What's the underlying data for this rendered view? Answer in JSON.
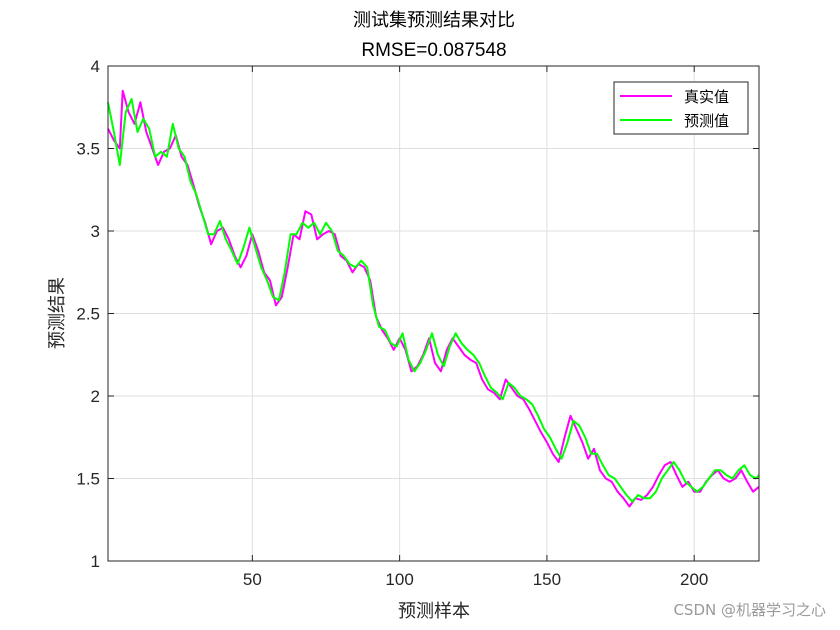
{
  "chart_data": {
    "type": "line",
    "title": "测试集预测结果对比",
    "subtitle": "RMSE=0.087548",
    "xlabel": "预测样本",
    "ylabel": "预测结果",
    "xlim": [
      1,
      222
    ],
    "ylim": [
      1,
      4
    ],
    "xticks": [
      50,
      100,
      150,
      200
    ],
    "yticks": [
      1,
      1.5,
      2,
      2.5,
      3,
      3.5,
      4
    ],
    "xtick_labels": [
      "50",
      "100",
      "150",
      "200"
    ],
    "ytick_labels": [
      "1",
      "1.5",
      "2",
      "2.5",
      "3",
      "3.5",
      "4"
    ],
    "grid": true,
    "legend_position": "top-right",
    "series": [
      {
        "name": "真实值",
        "color": "#ff00ff",
        "points": [
          [
            1,
            3.62
          ],
          [
            3,
            3.55
          ],
          [
            5,
            3.5
          ],
          [
            6,
            3.85
          ],
          [
            8,
            3.72
          ],
          [
            10,
            3.65
          ],
          [
            12,
            3.78
          ],
          [
            14,
            3.6
          ],
          [
            16,
            3.5
          ],
          [
            18,
            3.4
          ],
          [
            20,
            3.48
          ],
          [
            22,
            3.5
          ],
          [
            24,
            3.58
          ],
          [
            26,
            3.45
          ],
          [
            28,
            3.4
          ],
          [
            30,
            3.28
          ],
          [
            32,
            3.15
          ],
          [
            34,
            3.05
          ],
          [
            36,
            2.92
          ],
          [
            38,
            3.0
          ],
          [
            40,
            3.02
          ],
          [
            42,
            2.95
          ],
          [
            44,
            2.85
          ],
          [
            46,
            2.78
          ],
          [
            48,
            2.85
          ],
          [
            50,
            2.98
          ],
          [
            52,
            2.88
          ],
          [
            54,
            2.75
          ],
          [
            56,
            2.7
          ],
          [
            58,
            2.55
          ],
          [
            60,
            2.6
          ],
          [
            62,
            2.78
          ],
          [
            64,
            2.98
          ],
          [
            66,
            2.95
          ],
          [
            68,
            3.12
          ],
          [
            70,
            3.1
          ],
          [
            72,
            2.95
          ],
          [
            74,
            2.98
          ],
          [
            76,
            3.0
          ],
          [
            78,
            2.98
          ],
          [
            80,
            2.85
          ],
          [
            82,
            2.82
          ],
          [
            84,
            2.75
          ],
          [
            86,
            2.8
          ],
          [
            88,
            2.78
          ],
          [
            90,
            2.7
          ],
          [
            92,
            2.48
          ],
          [
            94,
            2.4
          ],
          [
            96,
            2.35
          ],
          [
            98,
            2.28
          ],
          [
            100,
            2.35
          ],
          [
            102,
            2.28
          ],
          [
            104,
            2.15
          ],
          [
            106,
            2.18
          ],
          [
            108,
            2.25
          ],
          [
            110,
            2.35
          ],
          [
            112,
            2.2
          ],
          [
            114,
            2.15
          ],
          [
            116,
            2.28
          ],
          [
            118,
            2.35
          ],
          [
            120,
            2.3
          ],
          [
            122,
            2.25
          ],
          [
            124,
            2.22
          ],
          [
            126,
            2.2
          ],
          [
            128,
            2.1
          ],
          [
            130,
            2.04
          ],
          [
            132,
            2.02
          ],
          [
            134,
            1.98
          ],
          [
            136,
            2.1
          ],
          [
            138,
            2.05
          ],
          [
            140,
            2.0
          ],
          [
            142,
            1.98
          ],
          [
            144,
            1.92
          ],
          [
            146,
            1.85
          ],
          [
            148,
            1.78
          ],
          [
            150,
            1.72
          ],
          [
            152,
            1.65
          ],
          [
            154,
            1.6
          ],
          [
            156,
            1.75
          ],
          [
            158,
            1.88
          ],
          [
            160,
            1.8
          ],
          [
            162,
            1.72
          ],
          [
            164,
            1.62
          ],
          [
            166,
            1.68
          ],
          [
            168,
            1.55
          ],
          [
            170,
            1.5
          ],
          [
            172,
            1.48
          ],
          [
            174,
            1.42
          ],
          [
            176,
            1.38
          ],
          [
            178,
            1.33
          ],
          [
            180,
            1.38
          ],
          [
            182,
            1.37
          ],
          [
            184,
            1.4
          ],
          [
            186,
            1.45
          ],
          [
            188,
            1.52
          ],
          [
            190,
            1.58
          ],
          [
            192,
            1.6
          ],
          [
            194,
            1.52
          ],
          [
            196,
            1.45
          ],
          [
            198,
            1.48
          ],
          [
            200,
            1.42
          ],
          [
            202,
            1.42
          ],
          [
            204,
            1.48
          ],
          [
            206,
            1.52
          ],
          [
            208,
            1.55
          ],
          [
            210,
            1.5
          ],
          [
            212,
            1.48
          ],
          [
            214,
            1.5
          ],
          [
            216,
            1.55
          ],
          [
            218,
            1.48
          ],
          [
            220,
            1.42
          ],
          [
            222,
            1.45
          ]
        ]
      },
      {
        "name": "预测值",
        "color": "#00ff00",
        "points": [
          [
            1,
            3.78
          ],
          [
            3,
            3.6
          ],
          [
            5,
            3.4
          ],
          [
            7,
            3.72
          ],
          [
            9,
            3.8
          ],
          [
            11,
            3.6
          ],
          [
            13,
            3.68
          ],
          [
            15,
            3.62
          ],
          [
            17,
            3.45
          ],
          [
            19,
            3.48
          ],
          [
            21,
            3.45
          ],
          [
            23,
            3.65
          ],
          [
            25,
            3.5
          ],
          [
            27,
            3.45
          ],
          [
            29,
            3.3
          ],
          [
            31,
            3.22
          ],
          [
            33,
            3.1
          ],
          [
            35,
            2.98
          ],
          [
            37,
            2.98
          ],
          [
            39,
            3.06
          ],
          [
            41,
            2.95
          ],
          [
            43,
            2.88
          ],
          [
            45,
            2.8
          ],
          [
            47,
            2.9
          ],
          [
            49,
            3.02
          ],
          [
            51,
            2.9
          ],
          [
            53,
            2.78
          ],
          [
            55,
            2.7
          ],
          [
            57,
            2.6
          ],
          [
            59,
            2.58
          ],
          [
            61,
            2.75
          ],
          [
            63,
            2.98
          ],
          [
            65,
            2.98
          ],
          [
            67,
            3.05
          ],
          [
            69,
            3.02
          ],
          [
            71,
            3.05
          ],
          [
            73,
            2.98
          ],
          [
            75,
            3.05
          ],
          [
            77,
            3.0
          ],
          [
            79,
            2.88
          ],
          [
            81,
            2.85
          ],
          [
            83,
            2.8
          ],
          [
            85,
            2.78
          ],
          [
            87,
            2.82
          ],
          [
            89,
            2.78
          ],
          [
            91,
            2.55
          ],
          [
            93,
            2.42
          ],
          [
            95,
            2.4
          ],
          [
            97,
            2.32
          ],
          [
            99,
            2.3
          ],
          [
            101,
            2.38
          ],
          [
            103,
            2.22
          ],
          [
            105,
            2.15
          ],
          [
            107,
            2.2
          ],
          [
            109,
            2.28
          ],
          [
            111,
            2.38
          ],
          [
            113,
            2.25
          ],
          [
            115,
            2.18
          ],
          [
            117,
            2.3
          ],
          [
            119,
            2.38
          ],
          [
            121,
            2.32
          ],
          [
            123,
            2.28
          ],
          [
            125,
            2.25
          ],
          [
            127,
            2.2
          ],
          [
            129,
            2.12
          ],
          [
            131,
            2.05
          ],
          [
            133,
            2.02
          ],
          [
            135,
            1.98
          ],
          [
            137,
            2.08
          ],
          [
            139,
            2.05
          ],
          [
            141,
            2.0
          ],
          [
            143,
            1.98
          ],
          [
            145,
            1.95
          ],
          [
            147,
            1.88
          ],
          [
            149,
            1.8
          ],
          [
            151,
            1.75
          ],
          [
            153,
            1.68
          ],
          [
            155,
            1.62
          ],
          [
            157,
            1.72
          ],
          [
            159,
            1.85
          ],
          [
            161,
            1.82
          ],
          [
            163,
            1.75
          ],
          [
            165,
            1.65
          ],
          [
            167,
            1.65
          ],
          [
            169,
            1.58
          ],
          [
            171,
            1.52
          ],
          [
            173,
            1.5
          ],
          [
            175,
            1.45
          ],
          [
            177,
            1.4
          ],
          [
            179,
            1.36
          ],
          [
            181,
            1.4
          ],
          [
            183,
            1.38
          ],
          [
            185,
            1.38
          ],
          [
            187,
            1.42
          ],
          [
            189,
            1.5
          ],
          [
            191,
            1.55
          ],
          [
            193,
            1.6
          ],
          [
            195,
            1.55
          ],
          [
            197,
            1.48
          ],
          [
            199,
            1.45
          ],
          [
            201,
            1.42
          ],
          [
            203,
            1.45
          ],
          [
            205,
            1.5
          ],
          [
            207,
            1.55
          ],
          [
            209,
            1.55
          ],
          [
            211,
            1.52
          ],
          [
            213,
            1.5
          ],
          [
            215,
            1.55
          ],
          [
            217,
            1.58
          ],
          [
            219,
            1.52
          ],
          [
            221,
            1.5
          ],
          [
            222,
            1.52
          ]
        ]
      }
    ]
  },
  "watermark": "CSDN @机器学习之心"
}
